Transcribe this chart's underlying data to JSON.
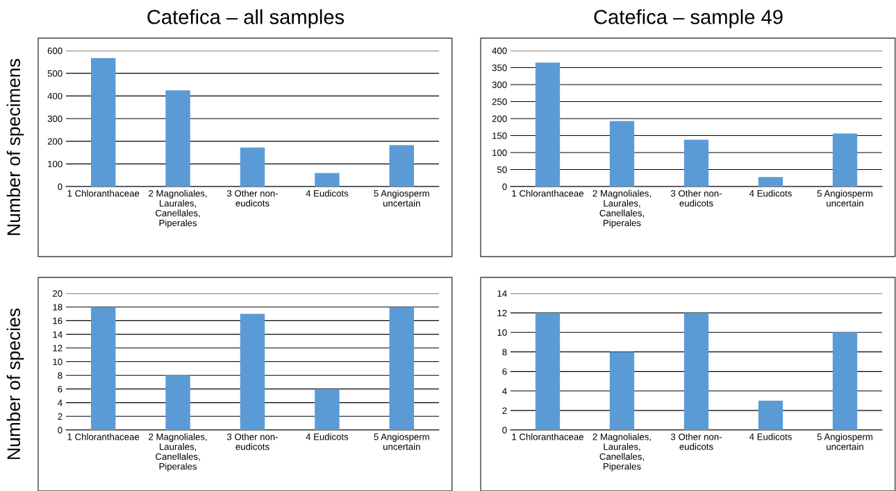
{
  "chart_data": [
    {
      "type": "bar",
      "title": "Catefica – all samples",
      "ylabel": "Number of specimens",
      "categories": [
        "1 Chloranthaceae",
        "2 Magnoliales,\nLaurales,\nCanellales,\nPiperales",
        "3 Other non-\neudicots",
        "4 Eudicots",
        "5 Angiosperm\nuncertain"
      ],
      "values": [
        567,
        425,
        172,
        60,
        183
      ],
      "color": "#5b9bd5",
      "ylim": [
        0,
        600
      ],
      "yticks": [
        0,
        100,
        200,
        300,
        400,
        500,
        600
      ],
      "grid": "y"
    },
    {
      "type": "bar",
      "title": "Catefica – sample 49",
      "categories": [
        "1 Chloranthaceae",
        "2 Magnoliales,\nLaurales,\nCanellales,\nPiperales",
        "3 Other non-\neudicots",
        "4 Eudicots",
        "5 Angiosperm\nuncertain"
      ],
      "values": [
        365,
        193,
        138,
        28,
        156
      ],
      "color": "#5b9bd5",
      "ylim": [
        0,
        400
      ],
      "yticks": [
        0,
        50,
        100,
        150,
        200,
        250,
        300,
        350,
        400
      ],
      "grid": "y"
    },
    {
      "type": "bar",
      "ylabel": "Number of species",
      "categories": [
        "1 Chloranthaceae",
        "2 Magnoliales,\nLaurales,\nCanellales,\nPiperales",
        "3 Other non-\neudicots",
        "4 Eudicots",
        "5 Angiosperm\nuncertain"
      ],
      "values": [
        18,
        8,
        17,
        6,
        18
      ],
      "color": "#5b9bd5",
      "ylim": [
        0,
        20
      ],
      "yticks": [
        0,
        2,
        4,
        6,
        8,
        10,
        12,
        14,
        16,
        18,
        20
      ],
      "grid": "y"
    },
    {
      "type": "bar",
      "categories": [
        "1 Chloranthaceae",
        "2 Magnoliales,\nLaurales,\nCanellales,\nPiperales",
        "3 Other non-\neudicots",
        "4 Eudicots",
        "5 Angiosperm\nuncertain"
      ],
      "values": [
        12,
        8,
        12,
        3,
        10
      ],
      "color": "#5b9bd5",
      "ylim": [
        0,
        14
      ],
      "yticks": [
        0,
        2,
        4,
        6,
        8,
        10,
        12,
        14
      ],
      "grid": "y"
    }
  ]
}
